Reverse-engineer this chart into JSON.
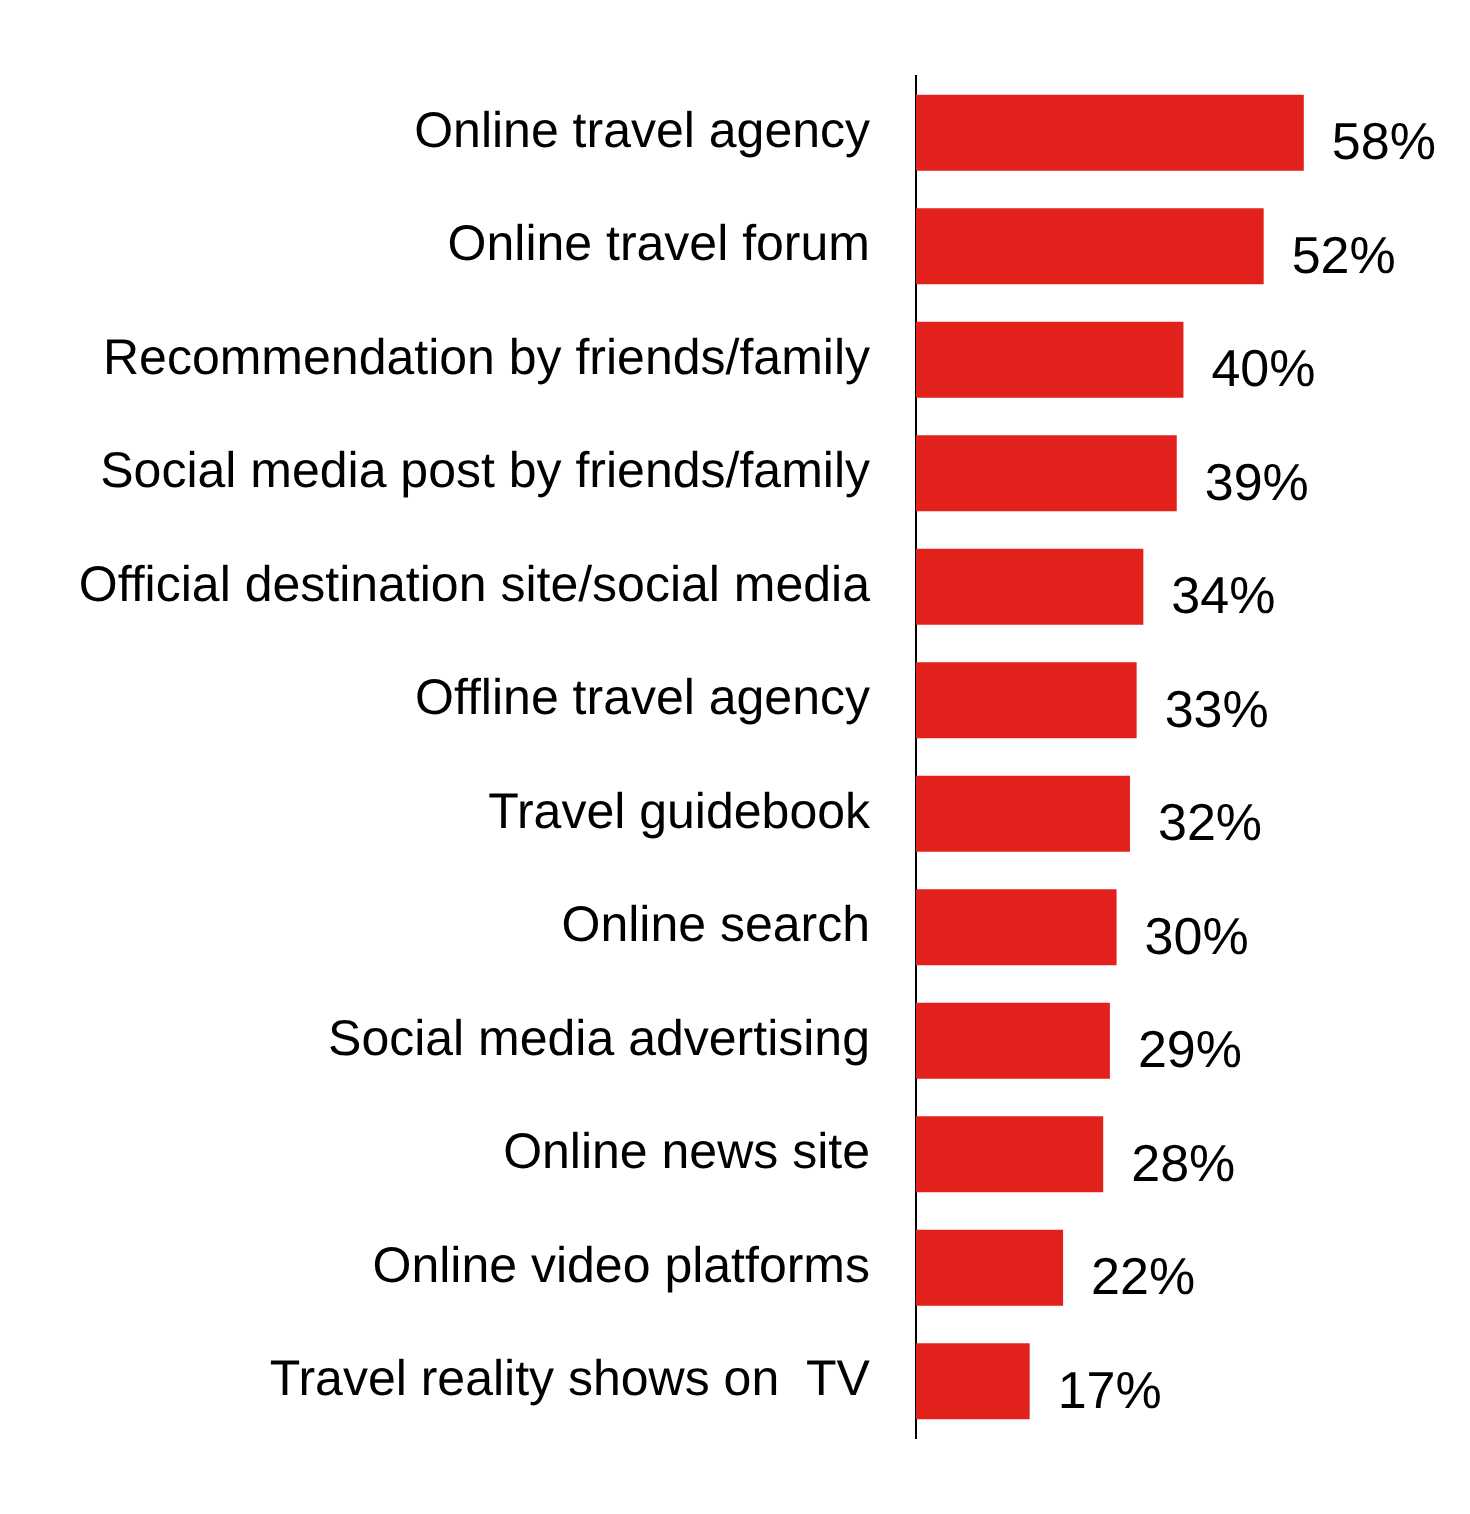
{
  "chart_data": {
    "type": "bar",
    "orientation": "horizontal",
    "categories": [
      "Online travel agency",
      "Online travel forum",
      "Recommendation by friends/family",
      "Social media post by friends/family",
      "Official destination site/social media",
      "Offline travel agency",
      "Travel guidebook",
      "Online search",
      "Social media advertising",
      "Online news site",
      "Online video platforms",
      "Travel reality shows on  TV"
    ],
    "values": [
      58,
      52,
      40,
      39,
      34,
      33,
      32,
      30,
      29,
      28,
      22,
      17
    ],
    "value_labels": [
      "58%",
      "52%",
      "40%",
      "39%",
      "34%",
      "33%",
      "32%",
      "30%",
      "29%",
      "28%",
      "22%",
      "17%"
    ],
    "color": "#e3211c"
  }
}
